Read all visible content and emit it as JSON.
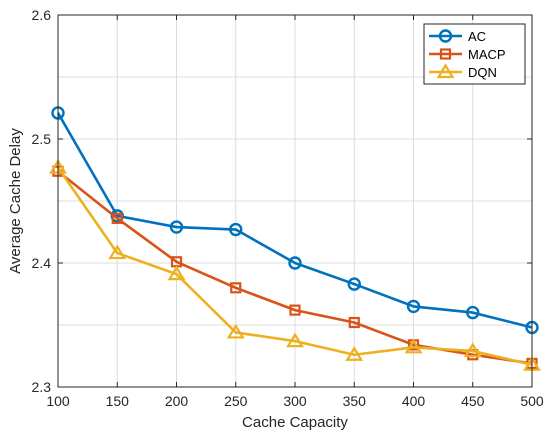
{
  "chart_data": {
    "type": "line",
    "title": "",
    "xlabel": "Cache Capacity",
    "ylabel": "Average Cache Delay",
    "x": [
      100,
      150,
      200,
      250,
      300,
      350,
      400,
      450,
      500
    ],
    "xlim": [
      100,
      500
    ],
    "ylim": [
      2.3,
      2.6
    ],
    "xticks": [
      "100",
      "150",
      "200",
      "250",
      "300",
      "350",
      "400",
      "450",
      "500"
    ],
    "yticks": [
      "2.3",
      "2.4",
      "2.5",
      "2.6"
    ],
    "grid": true,
    "legend_position": "top-right",
    "series": [
      {
        "name": "AC",
        "color": "#0072BD",
        "marker": "circle",
        "values": [
          2.521,
          2.438,
          2.429,
          2.427,
          2.4,
          2.383,
          2.365,
          2.36,
          2.348
        ]
      },
      {
        "name": "MACP",
        "color": "#D95319",
        "marker": "square",
        "values": [
          2.474,
          2.436,
          2.401,
          2.38,
          2.362,
          2.352,
          2.334,
          2.326,
          2.319
        ]
      },
      {
        "name": "DQN",
        "color": "#EDB120",
        "marker": "triangle",
        "values": [
          2.477,
          2.408,
          2.391,
          2.344,
          2.337,
          2.326,
          2.332,
          2.329,
          2.318
        ]
      }
    ]
  }
}
